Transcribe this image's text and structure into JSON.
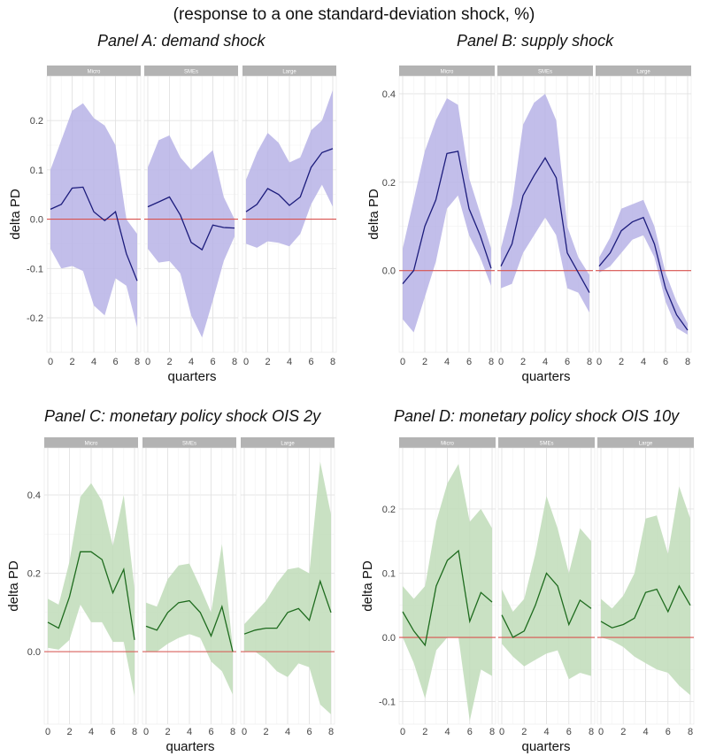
{
  "title": "(response to a one standard-deviation shock, %)",
  "chart_data": [
    {
      "type": "line",
      "title": "Panel A: demand shock",
      "xlabel": "quarters",
      "ylabel": "delta PD",
      "x": [
        0,
        1,
        2,
        3,
        4,
        5,
        6,
        7,
        8
      ],
      "ylim": [
        -0.27,
        0.29
      ],
      "yticks": [
        -0.2,
        -0.1,
        0.0,
        0.1,
        0.2
      ],
      "ytick_labels": [
        "-0.2",
        "-0.1",
        "0.0",
        "0.1",
        "0.2"
      ],
      "xticks": [
        0,
        2,
        4,
        6,
        8
      ],
      "line_color": "#1c1c7c",
      "band_color": "#b7b3e6",
      "zero_line_color": "#d9534f",
      "grid": true,
      "facets": [
        {
          "name": "Micro",
          "mean": [
            0.02,
            0.03,
            0.063,
            0.065,
            0.015,
            -0.003,
            0.015,
            -0.07,
            -0.125
          ],
          "upper": [
            0.1,
            0.16,
            0.22,
            0.235,
            0.205,
            0.19,
            0.15,
            0.0,
            -0.03
          ],
          "lower": [
            -0.06,
            -0.1,
            -0.095,
            -0.105,
            -0.175,
            -0.195,
            -0.12,
            -0.135,
            -0.22
          ]
        },
        {
          "name": "SMEs",
          "mean": [
            0.025,
            0.035,
            0.045,
            0.008,
            -0.047,
            -0.062,
            -0.012,
            -0.017,
            -0.018
          ],
          "upper": [
            0.105,
            0.16,
            0.17,
            0.125,
            0.1,
            0.12,
            0.14,
            0.045,
            0.0
          ],
          "lower": [
            -0.06,
            -0.088,
            -0.085,
            -0.11,
            -0.195,
            -0.24,
            -0.165,
            -0.085,
            -0.035
          ]
        },
        {
          "name": "Large",
          "mean": [
            0.015,
            0.03,
            0.062,
            0.05,
            0.028,
            0.045,
            0.105,
            0.135,
            0.143
          ],
          "upper": [
            0.08,
            0.135,
            0.175,
            0.155,
            0.115,
            0.125,
            0.18,
            0.2,
            0.262
          ],
          "lower": [
            -0.05,
            -0.058,
            -0.045,
            -0.048,
            -0.055,
            -0.03,
            0.03,
            0.07,
            0.025
          ]
        }
      ]
    },
    {
      "type": "line",
      "title": "Panel B: supply shock",
      "xlabel": "quarters",
      "ylabel": "delta PD",
      "x": [
        0,
        1,
        2,
        3,
        4,
        5,
        6,
        7,
        8
      ],
      "ylim": [
        -0.185,
        0.44
      ],
      "yticks": [
        0.0,
        0.2,
        0.4
      ],
      "ytick_labels": [
        "0.0",
        "0.2",
        "0.4"
      ],
      "xticks": [
        0,
        2,
        4,
        6,
        8
      ],
      "line_color": "#1c1c7c",
      "band_color": "#b7b3e6",
      "zero_line_color": "#d9534f",
      "grid": true,
      "facets": [
        {
          "name": "Micro",
          "mean": [
            -0.03,
            0.0,
            0.1,
            0.16,
            0.265,
            0.27,
            0.14,
            0.08,
            0.005
          ],
          "upper": [
            0.05,
            0.16,
            0.27,
            0.34,
            0.39,
            0.375,
            0.21,
            0.13,
            0.05
          ],
          "lower": [
            -0.11,
            -0.14,
            -0.06,
            0.02,
            0.14,
            0.17,
            0.08,
            0.03,
            -0.035
          ]
        },
        {
          "name": "SMEs",
          "mean": [
            0.01,
            0.06,
            0.17,
            0.215,
            0.255,
            0.21,
            0.04,
            -0.005,
            -0.05
          ],
          "upper": [
            0.05,
            0.15,
            0.33,
            0.38,
            0.4,
            0.34,
            0.1,
            0.03,
            -0.01
          ],
          "lower": [
            -0.04,
            -0.03,
            0.04,
            0.08,
            0.12,
            0.08,
            -0.04,
            -0.05,
            -0.095
          ]
        },
        {
          "name": "Large",
          "mean": [
            0.01,
            0.04,
            0.09,
            0.11,
            0.12,
            0.06,
            -0.04,
            -0.1,
            -0.135
          ],
          "upper": [
            0.03,
            0.075,
            0.14,
            0.15,
            0.16,
            0.1,
            -0.005,
            -0.07,
            -0.12
          ],
          "lower": [
            -0.005,
            0.01,
            0.04,
            0.07,
            0.08,
            0.03,
            -0.07,
            -0.13,
            -0.145
          ]
        }
      ]
    },
    {
      "type": "line",
      "title": "Panel C: monetary policy shock OIS 2y",
      "xlabel": "quarters",
      "ylabel": "delta PD",
      "x": [
        0,
        1,
        2,
        3,
        4,
        5,
        6,
        7,
        8
      ],
      "ylim": [
        -0.185,
        0.52
      ],
      "yticks": [
        0.0,
        0.2,
        0.4
      ],
      "ytick_labels": [
        "0.0",
        "0.2",
        "0.4"
      ],
      "xticks": [
        0,
        2,
        4,
        6,
        8
      ],
      "line_color": "#1e6b1e",
      "band_color": "#bfdcb8",
      "zero_line_color": "#d9534f",
      "grid": true,
      "facets": [
        {
          "name": "Micro",
          "mean": [
            0.075,
            0.06,
            0.14,
            0.255,
            0.255,
            0.235,
            0.15,
            0.21,
            0.03
          ],
          "upper": [
            0.135,
            0.12,
            0.23,
            0.395,
            0.43,
            0.385,
            0.27,
            0.4,
            0.16
          ],
          "lower": [
            0.01,
            0.005,
            0.03,
            0.12,
            0.075,
            0.075,
            0.025,
            0.025,
            -0.115
          ]
        },
        {
          "name": "SMEs",
          "mean": [
            0.065,
            0.055,
            0.1,
            0.125,
            0.13,
            0.1,
            0.04,
            0.115,
            0.0
          ],
          "upper": [
            0.125,
            0.115,
            0.185,
            0.22,
            0.225,
            0.165,
            0.1,
            0.275,
            0.01
          ],
          "lower": [
            0.0,
            0.0,
            0.02,
            0.035,
            0.045,
            0.035,
            -0.025,
            -0.05,
            -0.11
          ]
        },
        {
          "name": "Large",
          "mean": [
            0.045,
            0.055,
            0.06,
            0.06,
            0.1,
            0.11,
            0.08,
            0.18,
            0.1
          ],
          "upper": [
            0.07,
            0.1,
            0.13,
            0.175,
            0.21,
            0.215,
            0.2,
            0.485,
            0.35
          ],
          "lower": [
            0.0,
            0.0,
            -0.02,
            -0.05,
            -0.065,
            -0.03,
            -0.04,
            -0.135,
            -0.16
          ]
        }
      ]
    },
    {
      "type": "line",
      "title": "Panel D: monetary policy shock OIS 10y",
      "xlabel": "quarters",
      "ylabel": "delta PD",
      "x": [
        0,
        1,
        2,
        3,
        4,
        5,
        6,
        7,
        8
      ],
      "ylim": [
        -0.135,
        0.295
      ],
      "yticks": [
        -0.1,
        0.0,
        0.1,
        0.2
      ],
      "ytick_labels": [
        "-0.1",
        "0.0",
        "0.1",
        "0.2"
      ],
      "xticks": [
        0,
        2,
        4,
        6,
        8
      ],
      "line_color": "#1e6b1e",
      "band_color": "#bfdcb8",
      "zero_line_color": "#d9534f",
      "grid": true,
      "facets": [
        {
          "name": "Micro",
          "mean": [
            0.04,
            0.01,
            -0.012,
            0.08,
            0.12,
            0.135,
            0.025,
            0.07,
            0.055
          ],
          "upper": [
            0.08,
            0.06,
            0.08,
            0.18,
            0.24,
            0.27,
            0.18,
            0.2,
            0.17
          ],
          "lower": [
            0.0,
            -0.04,
            -0.095,
            -0.02,
            0.0,
            0.0,
            -0.13,
            -0.05,
            -0.06
          ]
        },
        {
          "name": "SMEs",
          "mean": [
            0.035,
            0.0,
            0.01,
            0.05,
            0.1,
            0.08,
            0.02,
            0.058,
            0.045
          ],
          "upper": [
            0.075,
            0.04,
            0.06,
            0.13,
            0.22,
            0.17,
            0.1,
            0.17,
            0.15
          ],
          "lower": [
            -0.01,
            -0.03,
            -0.045,
            -0.035,
            -0.025,
            -0.02,
            -0.065,
            -0.055,
            -0.06
          ]
        },
        {
          "name": "Large",
          "mean": [
            0.025,
            0.015,
            0.02,
            0.03,
            0.07,
            0.075,
            0.04,
            0.08,
            0.05
          ],
          "upper": [
            0.06,
            0.045,
            0.065,
            0.1,
            0.185,
            0.19,
            0.13,
            0.235,
            0.185
          ],
          "lower": [
            0.0,
            -0.005,
            -0.015,
            -0.03,
            -0.04,
            -0.05,
            -0.055,
            -0.075,
            -0.09
          ]
        }
      ]
    }
  ]
}
